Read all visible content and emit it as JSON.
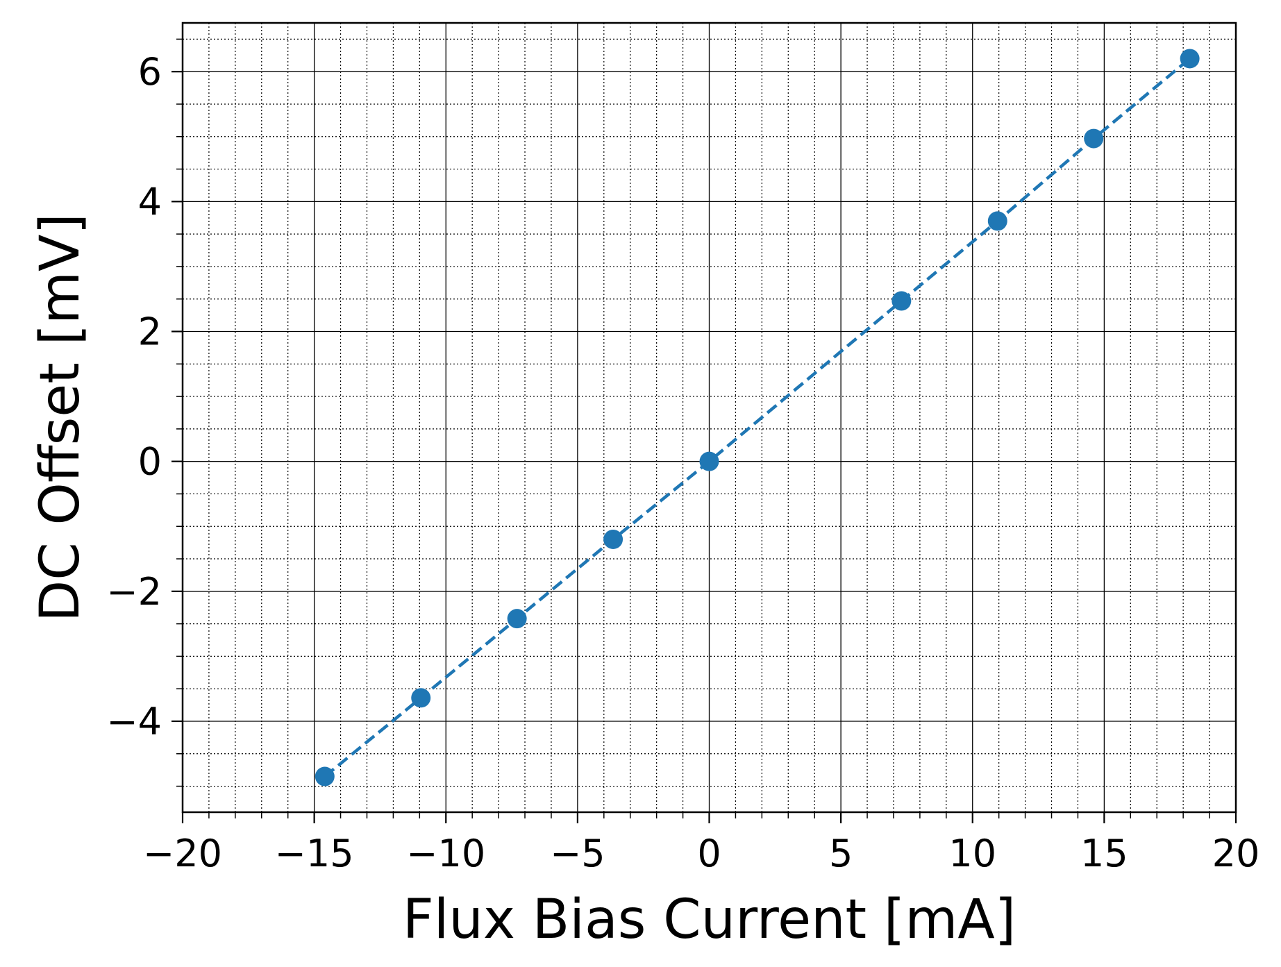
{
  "chart_data": {
    "type": "scatter",
    "title": "",
    "xlabel": "Flux Bias Current [mA]",
    "ylabel": "DC Offset [mV]",
    "xlim": [
      -20,
      20
    ],
    "ylim": [
      -5.4,
      6.75
    ],
    "x_ticks": [
      -20,
      -15,
      -10,
      -5,
      0,
      5,
      10,
      15,
      20
    ],
    "y_ticks": [
      -4,
      -2,
      0,
      2,
      4,
      6
    ],
    "x_tick_labels": [
      "−20",
      "−15",
      "−10",
      "−5",
      "0",
      "5",
      "10",
      "15",
      "20"
    ],
    "y_tick_labels": [
      "−4",
      "−2",
      "0",
      "2",
      "4",
      "6"
    ],
    "grid": "major solid, minor dotted",
    "series": [
      {
        "color": "#1f77b4",
        "marker": "circle",
        "line_style": "dashed",
        "points": [
          {
            "x": -14.6,
            "y": -4.85
          },
          {
            "x": -10.95,
            "y": -3.64
          },
          {
            "x": -7.3,
            "y": -2.42
          },
          {
            "x": -3.65,
            "y": -1.2
          },
          {
            "x": 0.0,
            "y": 0.0
          },
          {
            "x": 7.3,
            "y": 2.47
          },
          {
            "x": 10.95,
            "y": 3.7
          },
          {
            "x": 14.6,
            "y": 4.97
          },
          {
            "x": 18.25,
            "y": 6.2
          }
        ]
      }
    ]
  }
}
